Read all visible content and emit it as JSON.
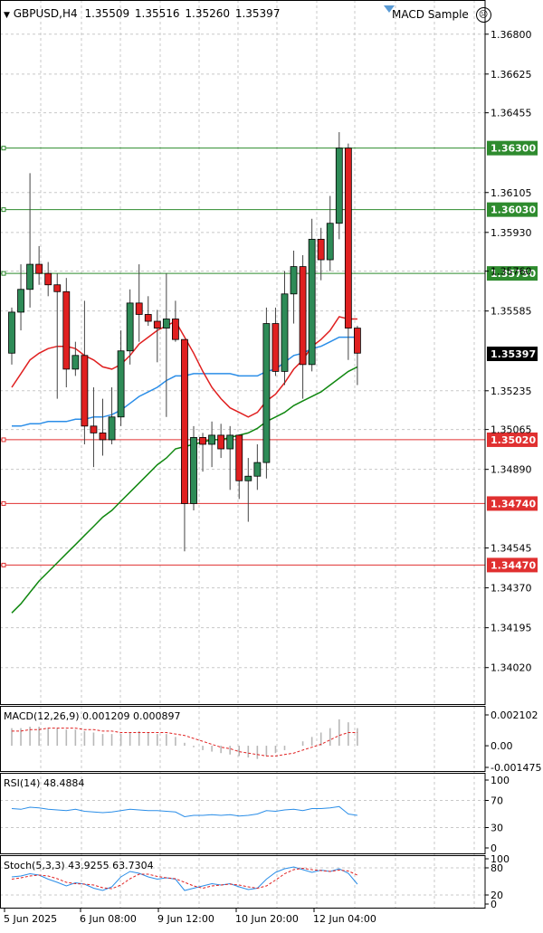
{
  "header": {
    "symbol": "GBPUSD,H4",
    "open": "1.35509",
    "high": "1.35516",
    "low": "1.35260",
    "close": "1.35397",
    "expert": "MACD Sample"
  },
  "colors": {
    "bull": "#2e8b57",
    "bear": "#e02020",
    "ma_fast": "#e02020",
    "ma_mid": "#2b8ee8",
    "ma_slow": "#118811",
    "grid": "#c8c8c8",
    "level_green": "#2e8b2e",
    "level_red": "#e03030",
    "rsi": "#2b8ee8",
    "stoch_main": "#2b8ee8",
    "stoch_signal": "#e02020",
    "macd_hist": "#b8b8b8",
    "macd_signal": "#e02020"
  },
  "price_axis": {
    "ticks": [
      "1.36800",
      "1.36625",
      "1.36455",
      "1.36105",
      "1.35930",
      "1.35760",
      "1.35585",
      "1.35235",
      "1.35065",
      "1.34890",
      "1.34545",
      "1.34370",
      "1.34195",
      "1.34020"
    ],
    "min": 1.3386,
    "max": 1.3695
  },
  "levels": [
    {
      "label": "1.36300",
      "value": 1.363,
      "color": "green"
    },
    {
      "label": "1.36030",
      "value": 1.3603,
      "color": "green"
    },
    {
      "label": "1.35750",
      "value": 1.3575,
      "color": "green"
    },
    {
      "label": "1.35020",
      "value": 1.3502,
      "color": "red"
    },
    {
      "label": "1.34740",
      "value": 1.3474,
      "color": "red"
    },
    {
      "label": "1.34470",
      "value": 1.3447,
      "color": "red"
    }
  ],
  "current_price": {
    "label": "1.35397",
    "value": 1.35397
  },
  "chart_data": {
    "type": "candlestick",
    "title": "GBPUSD,H4",
    "candles": [
      {
        "o": 1.354,
        "h": 1.356,
        "l": 1.3535,
        "c": 1.3558
      },
      {
        "o": 1.3558,
        "h": 1.3579,
        "l": 1.355,
        "c": 1.3568
      },
      {
        "o": 1.3568,
        "h": 1.3619,
        "l": 1.356,
        "c": 1.3579
      },
      {
        "o": 1.3579,
        "h": 1.3587,
        "l": 1.357,
        "c": 1.3575
      },
      {
        "o": 1.3575,
        "h": 1.358,
        "l": 1.3565,
        "c": 1.357
      },
      {
        "o": 1.357,
        "h": 1.3575,
        "l": 1.352,
        "c": 1.3567
      },
      {
        "o": 1.3567,
        "h": 1.3573,
        "l": 1.3525,
        "c": 1.3533
      },
      {
        "o": 1.3533,
        "h": 1.3545,
        "l": 1.353,
        "c": 1.3539
      },
      {
        "o": 1.3539,
        "h": 1.3563,
        "l": 1.35,
        "c": 1.3508
      },
      {
        "o": 1.3508,
        "h": 1.3525,
        "l": 1.349,
        "c": 1.3505
      },
      {
        "o": 1.3505,
        "h": 1.352,
        "l": 1.3495,
        "c": 1.3502
      },
      {
        "o": 1.3502,
        "h": 1.3525,
        "l": 1.35,
        "c": 1.3512
      },
      {
        "o": 1.3512,
        "h": 1.355,
        "l": 1.3508,
        "c": 1.3541
      },
      {
        "o": 1.3541,
        "h": 1.3568,
        "l": 1.3535,
        "c": 1.3562
      },
      {
        "o": 1.3562,
        "h": 1.3579,
        "l": 1.3545,
        "c": 1.3557
      },
      {
        "o": 1.3557,
        "h": 1.3565,
        "l": 1.3552,
        "c": 1.3554
      },
      {
        "o": 1.3554,
        "h": 1.3559,
        "l": 1.3536,
        "c": 1.3551
      },
      {
        "o": 1.3551,
        "h": 1.3575,
        "l": 1.3512,
        "c": 1.3555
      },
      {
        "o": 1.3555,
        "h": 1.3563,
        "l": 1.3545,
        "c": 1.3546
      },
      {
        "o": 1.3546,
        "h": 1.3546,
        "l": 1.3453,
        "c": 1.3474
      },
      {
        "o": 1.3474,
        "h": 1.3508,
        "l": 1.3471,
        "c": 1.3503
      },
      {
        "o": 1.3503,
        "h": 1.3505,
        "l": 1.3488,
        "c": 1.35
      },
      {
        "o": 1.35,
        "h": 1.351,
        "l": 1.349,
        "c": 1.3504
      },
      {
        "o": 1.3504,
        "h": 1.3509,
        "l": 1.3494,
        "c": 1.3498
      },
      {
        "o": 1.3498,
        "h": 1.3508,
        "l": 1.348,
        "c": 1.3504
      },
      {
        "o": 1.3504,
        "h": 1.3504,
        "l": 1.3476,
        "c": 1.3484
      },
      {
        "o": 1.3484,
        "h": 1.3494,
        "l": 1.3466,
        "c": 1.3486
      },
      {
        "o": 1.3486,
        "h": 1.35,
        "l": 1.348,
        "c": 1.3492
      },
      {
        "o": 1.3492,
        "h": 1.356,
        "l": 1.3485,
        "c": 1.3553
      },
      {
        "o": 1.3553,
        "h": 1.356,
        "l": 1.353,
        "c": 1.3532
      },
      {
        "o": 1.3532,
        "h": 1.3576,
        "l": 1.3526,
        "c": 1.3566
      },
      {
        "o": 1.3566,
        "h": 1.3585,
        "l": 1.3553,
        "c": 1.3578
      },
      {
        "o": 1.3578,
        "h": 1.3583,
        "l": 1.352,
        "c": 1.3535
      },
      {
        "o": 1.3535,
        "h": 1.3599,
        "l": 1.3532,
        "c": 1.359
      },
      {
        "o": 1.359,
        "h": 1.3595,
        "l": 1.3572,
        "c": 1.3581
      },
      {
        "o": 1.3581,
        "h": 1.3609,
        "l": 1.3576,
        "c": 1.3597
      },
      {
        "o": 1.3597,
        "h": 1.3637,
        "l": 1.359,
        "c": 1.363
      },
      {
        "o": 1.363,
        "h": 1.3632,
        "l": 1.3537,
        "c": 1.3551
      },
      {
        "o": 1.3551,
        "h": 1.3552,
        "l": 1.3526,
        "c": 1.354
      }
    ],
    "ma_fast": [
      1.3525,
      1.3531,
      1.3537,
      1.354,
      1.3542,
      1.3543,
      1.3543,
      1.3542,
      1.3539,
      1.3537,
      1.3534,
      1.3533,
      1.3535,
      1.3539,
      1.3544,
      1.3547,
      1.355,
      1.3552,
      1.3554,
      1.3547,
      1.354,
      1.3532,
      1.3525,
      1.352,
      1.3516,
      1.3514,
      1.3512,
      1.3514,
      1.3519,
      1.3522,
      1.3527,
      1.3533,
      1.3537,
      1.3543,
      1.3546,
      1.355,
      1.3556,
      1.3555,
      1.3555
    ],
    "ma_mid": [
      1.3508,
      1.3508,
      1.3509,
      1.3509,
      1.351,
      1.351,
      1.351,
      1.3511,
      1.3511,
      1.3512,
      1.3512,
      1.3513,
      1.3515,
      1.3518,
      1.3521,
      1.3523,
      1.3525,
      1.3528,
      1.353,
      1.353,
      1.3531,
      1.3531,
      1.3531,
      1.3531,
      1.3531,
      1.353,
      1.353,
      1.353,
      1.3532,
      1.3533,
      1.3536,
      1.3539,
      1.354,
      1.3542,
      1.3543,
      1.3545,
      1.3547,
      1.3547,
      1.3547
    ],
    "ma_slow": [
      1.3426,
      1.343,
      1.3435,
      1.344,
      1.3444,
      1.3448,
      1.3452,
      1.3456,
      1.346,
      1.3464,
      1.3468,
      1.3471,
      1.3475,
      1.3479,
      1.3483,
      1.3487,
      1.3491,
      1.3494,
      1.3498,
      1.3499,
      1.35,
      1.3501,
      1.3502,
      1.3502,
      1.3503,
      1.3504,
      1.3505,
      1.3507,
      1.351,
      1.3512,
      1.3514,
      1.3517,
      1.3519,
      1.3521,
      1.3523,
      1.3526,
      1.3529,
      1.3532,
      1.3534
    ]
  },
  "macd": {
    "label": "MACD(12,26,9) 0.001209 0.000897",
    "ticks": [
      "0.002102",
      "0.00",
      "-0.001475"
    ],
    "min": -0.001475,
    "max": 0.002102,
    "hist": [
      0.0012,
      0.0012,
      0.0013,
      0.0013,
      0.0012,
      0.0012,
      0.0011,
      0.0011,
      0.001,
      0.0009,
      0.0008,
      0.0008,
      0.0008,
      0.0009,
      0.001,
      0.0009,
      0.0008,
      0.0008,
      0.0006,
      0.0002,
      -0.0001,
      -0.0003,
      -0.0004,
      -0.0005,
      -0.0006,
      -0.0007,
      -0.0008,
      -0.0009,
      -0.0007,
      -0.0005,
      -0.0003,
      0.0,
      0.0003,
      0.0006,
      0.0009,
      0.0012,
      0.0018,
      0.0016,
      0.0012
    ],
    "signal": [
      0.001,
      0.001,
      0.0011,
      0.0011,
      0.0012,
      0.0012,
      0.0012,
      0.0012,
      0.0011,
      0.0011,
      0.001,
      0.001,
      0.0009,
      0.0009,
      0.0009,
      0.0009,
      0.0009,
      0.0009,
      0.0008,
      0.0007,
      0.0005,
      0.0003,
      0.0001,
      -0.0001,
      -0.0002,
      -0.0004,
      -0.0005,
      -0.0006,
      -0.0007,
      -0.0007,
      -0.0006,
      -0.0005,
      -0.0003,
      -0.0001,
      0.0001,
      0.0004,
      0.0007,
      0.0009,
      0.0009
    ]
  },
  "rsi": {
    "label": "RSI(14) 48.4884",
    "ticks": [
      "100",
      "70",
      "30",
      "0"
    ],
    "values": [
      58,
      57,
      60,
      59,
      57,
      56,
      55,
      57,
      54,
      53,
      52,
      53,
      55,
      57,
      56,
      55,
      55,
      54,
      53,
      46,
      48,
      48,
      49,
      48,
      49,
      47,
      48,
      50,
      55,
      54,
      56,
      57,
      55,
      58,
      58,
      59,
      61,
      50,
      48
    ]
  },
  "stoch": {
    "label": "Stoch(5,3,3) 43.9255 63.7304",
    "ticks": [
      "100",
      "80",
      "20",
      "0"
    ],
    "main": [
      60,
      62,
      67,
      64,
      55,
      48,
      40,
      47,
      44,
      35,
      30,
      38,
      60,
      72,
      68,
      60,
      55,
      58,
      55,
      30,
      35,
      40,
      45,
      42,
      45,
      38,
      32,
      35,
      55,
      70,
      78,
      82,
      76,
      70,
      75,
      72,
      78,
      68,
      44
    ],
    "signal": [
      55,
      58,
      62,
      64,
      62,
      56,
      48,
      45,
      44,
      42,
      36,
      34,
      42,
      56,
      66,
      66,
      61,
      58,
      56,
      48,
      40,
      35,
      40,
      42,
      44,
      42,
      38,
      35,
      40,
      53,
      67,
      76,
      79,
      76,
      74,
      72,
      75,
      73,
      64
    ]
  },
  "time_axis": {
    "labels": [
      "5 Jun 2025",
      "6 Jun 08:00",
      "9 Jun 12:00",
      "10 Jun 20:00",
      "12 Jun 04:00"
    ]
  }
}
